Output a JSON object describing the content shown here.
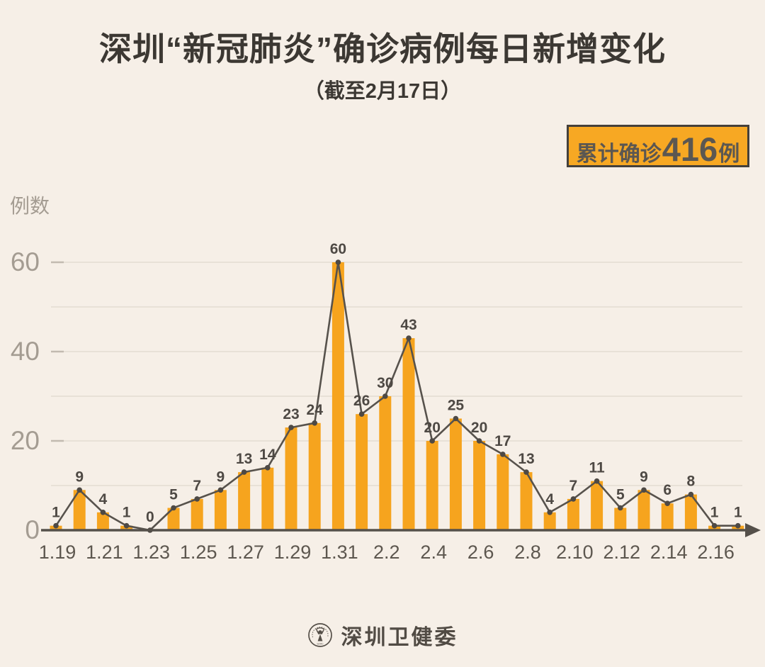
{
  "header": {
    "title": "深圳“新冠肺炎”确诊病例每日新增变化",
    "subtitle": "（截至2月17日）"
  },
  "badge": {
    "prefix": "累计确诊",
    "value": "416",
    "suffix": "例",
    "bg_color": "#F7A823",
    "border_color": "#44403B",
    "text_color": "#5B5751"
  },
  "chart_data": {
    "type": "bar",
    "overlay": "line",
    "title": "深圳“新冠肺炎”确诊病例每日新增变化",
    "subtitle": "（截至2月17日）",
    "ylabel": "例数",
    "xlabel": "",
    "categories": [
      "1.19",
      "1.20",
      "1.21",
      "1.22",
      "1.23",
      "1.24",
      "1.25",
      "1.26",
      "1.27",
      "1.28",
      "1.29",
      "1.30",
      "1.31",
      "2.1",
      "2.2",
      "2.3",
      "2.4",
      "2.5",
      "2.6",
      "2.7",
      "2.8",
      "2.9",
      "2.10",
      "2.11",
      "2.12",
      "2.13",
      "2.14",
      "2.15",
      "2.16",
      "2.17"
    ],
    "values": [
      1,
      9,
      4,
      1,
      0,
      5,
      7,
      9,
      13,
      14,
      23,
      24,
      60,
      26,
      30,
      43,
      20,
      25,
      20,
      17,
      13,
      4,
      7,
      11,
      5,
      9,
      6,
      8,
      1,
      1
    ],
    "x_labels_every": 2,
    "x_tick_labels_shown": [
      "1.19",
      "1.21",
      "1.23",
      "1.25",
      "1.27",
      "1.29",
      "1.31",
      "2.2",
      "2.4",
      "2.6",
      "2.8",
      "2.10",
      "2.12",
      "2.14",
      "2.16"
    ],
    "yticks": [
      0,
      20,
      40,
      60
    ],
    "ylim": [
      0,
      63
    ],
    "grid_step": 10,
    "grid_on": true,
    "total": 416,
    "bar_color": "#F6A41E",
    "line_color": "#57524C",
    "marker_color": "#4E4944",
    "value_label_color": "#4E4944",
    "axis_color": "#55504A",
    "ytick_label_color": "#A49C92",
    "xtick_label_color": "#5D574F",
    "grid_color": "#E8E1D7",
    "tick_mark_color": "#C2BAB0"
  },
  "footer": {
    "logo_text": "深圳卫健委",
    "logo_letters": "SZHC"
  },
  "colors": {
    "background": "#F6EFE7"
  }
}
